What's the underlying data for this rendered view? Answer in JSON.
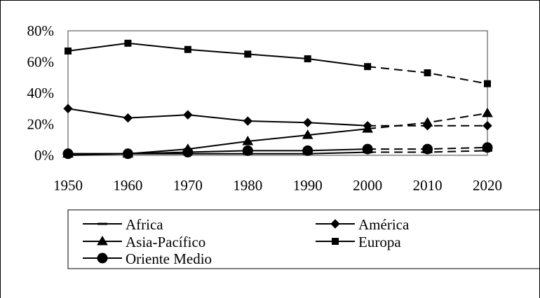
{
  "chart_data": {
    "type": "line",
    "title": "",
    "xlabel": "",
    "ylabel": "",
    "x": [
      1950,
      1960,
      1970,
      1980,
      1990,
      2000,
      2010,
      2020
    ],
    "x_tick_labels": [
      "1950",
      "1960",
      "1970",
      "1980",
      "1990",
      "2000",
      "2010",
      "2020"
    ],
    "y_tick_labels": [
      "0%",
      "20%",
      "40%",
      "60%",
      "80%"
    ],
    "ylim": [
      0,
      80
    ],
    "y_unit": "%",
    "projected_from_x": 2000,
    "projection_style": "dashed",
    "legend_position": "bottom",
    "series": [
      {
        "name": "Africa",
        "marker": "dash",
        "values": [
          0,
          1,
          1,
          1,
          1,
          2,
          2,
          3
        ]
      },
      {
        "name": "América",
        "marker": "diamond",
        "values": [
          30,
          24,
          26,
          22,
          21,
          19,
          19,
          19
        ]
      },
      {
        "name": "Asia-Pacífico",
        "marker": "triangle",
        "values": [
          1,
          1,
          4,
          9,
          13,
          17,
          21,
          27
        ]
      },
      {
        "name": "Europa",
        "marker": "square",
        "values": [
          67,
          72,
          68,
          65,
          62,
          57,
          53,
          46
        ]
      },
      {
        "name": "Oriente Medio",
        "marker": "circle",
        "values": [
          1,
          1,
          2,
          3,
          3,
          4,
          4,
          5
        ]
      }
    ]
  }
}
